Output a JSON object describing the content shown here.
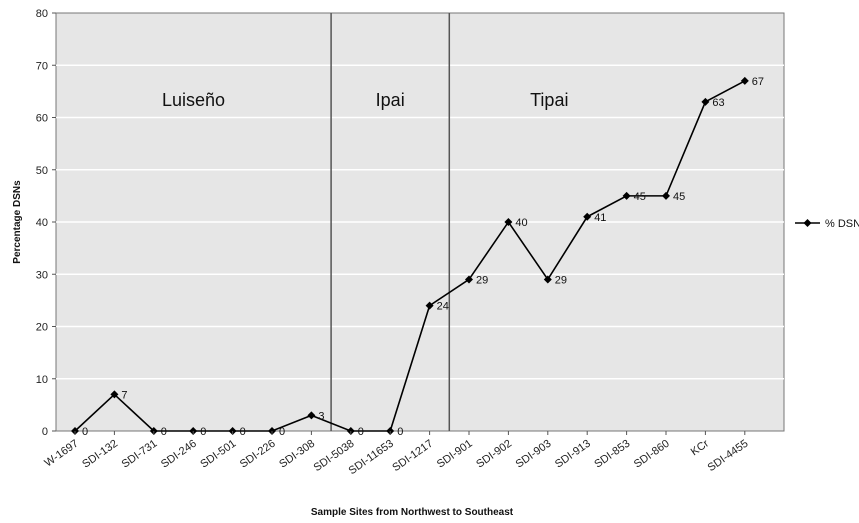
{
  "chart_data": {
    "type": "line",
    "title": "",
    "xlabel": "Sample Sites from Northwest to Southeast",
    "ylabel": "Percentage DSNs",
    "ylim": [
      0,
      80
    ],
    "yticks": [
      0,
      10,
      20,
      30,
      40,
      50,
      60,
      70,
      80
    ],
    "grid": "horizontal",
    "legend_position": "right",
    "categories": [
      "W-1697",
      "SDI-132",
      "SDI-731",
      "SDI-246",
      "SDI-501",
      "SDI-226",
      "SDI-308",
      "SDI-5038",
      "SDI-11653",
      "SDI-1217",
      "SDI-901",
      "SDI-902",
      "SDI-903",
      "SDI-913",
      "SDI-853",
      "SDI-860",
      "KCr",
      "SDI-4455"
    ],
    "series": [
      {
        "name": "% DSN",
        "color": "#000000",
        "marker": "diamond",
        "values": [
          0,
          7,
          0,
          0,
          0,
          0,
          3,
          0,
          0,
          24,
          29,
          40,
          29,
          41,
          45,
          45,
          63,
          67
        ],
        "data_labels": [
          "0",
          "7",
          "0",
          "0",
          "0",
          "0",
          "3",
          "0",
          "0",
          "24",
          "29",
          "40",
          "29",
          "41",
          "45",
          "45",
          "63",
          "67"
        ]
      }
    ],
    "regions": [
      {
        "label": "Luiseño",
        "from_category": "W-1697",
        "to_category": "SDI-308"
      },
      {
        "label": "Ipai",
        "from_category": "SDI-5038",
        "to_category": "SDI-1217"
      },
      {
        "label": "Tipai",
        "from_category": "SDI-901",
        "to_category": "SDI-4455"
      }
    ],
    "colors": {
      "plot_background": "#e6e6e6",
      "gridline": "#ffffff",
      "line": "#000000",
      "divider": "#555555"
    }
  }
}
